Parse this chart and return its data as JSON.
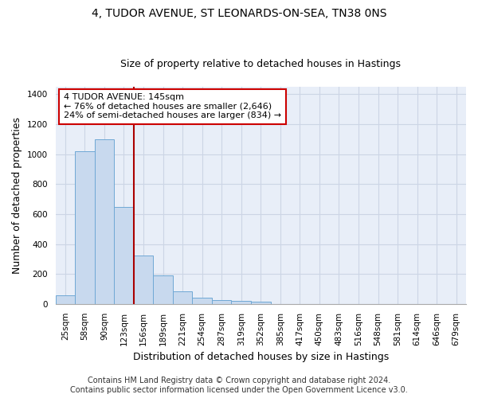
{
  "title_line1": "4, TUDOR AVENUE, ST LEONARDS-ON-SEA, TN38 0NS",
  "title_line2": "Size of property relative to detached houses in Hastings",
  "xlabel": "Distribution of detached houses by size in Hastings",
  "ylabel": "Number of detached properties",
  "categories": [
    "25sqm",
    "58sqm",
    "90sqm",
    "123sqm",
    "156sqm",
    "189sqm",
    "221sqm",
    "254sqm",
    "287sqm",
    "319sqm",
    "352sqm",
    "385sqm",
    "417sqm",
    "450sqm",
    "483sqm",
    "516sqm",
    "548sqm",
    "581sqm",
    "614sqm",
    "646sqm",
    "679sqm"
  ],
  "values": [
    55,
    1020,
    1100,
    650,
    325,
    190,
    85,
    40,
    25,
    20,
    13,
    0,
    0,
    0,
    0,
    0,
    0,
    0,
    0,
    0,
    0
  ],
  "bar_color": "#c8d9ee",
  "bar_edge_color": "#6fa8d5",
  "annotation_text_line1": "4 TUDOR AVENUE: 145sqm",
  "annotation_text_line2": "← 76% of detached houses are smaller (2,646)",
  "annotation_text_line3": "24% of semi-detached houses are larger (834) →",
  "annotation_box_color": "#ffffff",
  "annotation_box_edge_color": "#cc0000",
  "property_line_color": "#aa0000",
  "ylim": [
    0,
    1450
  ],
  "yticks": [
    0,
    200,
    400,
    600,
    800,
    1000,
    1200,
    1400
  ],
  "grid_color": "#ccd5e5",
  "background_color": "#e8eef8",
  "footer_line1": "Contains HM Land Registry data © Crown copyright and database right 2024.",
  "footer_line2": "Contains public sector information licensed under the Open Government Licence v3.0.",
  "title_fontsize": 10,
  "subtitle_fontsize": 9,
  "annotation_fontsize": 8,
  "axis_label_fontsize": 9,
  "tick_fontsize": 7.5,
  "footer_fontsize": 7
}
